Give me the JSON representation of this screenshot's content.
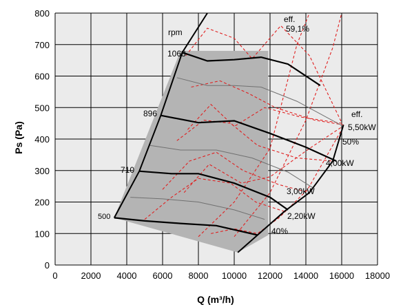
{
  "chart_data": {
    "type": "line",
    "title": "",
    "xlabel": "Q (m³/h)",
    "ylabel": "Ps (Pa)",
    "xlim": [
      0,
      18000
    ],
    "ylim": [
      0,
      800
    ],
    "x_ticks": [
      "0",
      "2000",
      "4000",
      "6000",
      "8000",
      "10000",
      "12000",
      "14000",
      "16000",
      "18000"
    ],
    "y_ticks": [
      "0",
      "100",
      "200",
      "300",
      "400",
      "500",
      "600",
      "700",
      "800"
    ],
    "grid": true,
    "colors": {
      "plot_bg": "#ebebeb",
      "operating_area": "#b4b4b4",
      "speed_curve": "#000000",
      "intermediate_curve": "#707070",
      "iso_line": "#e02020"
    },
    "operating_area": [
      [
        3300,
        150
      ],
      [
        7000,
        680
      ],
      [
        11900,
        680
      ],
      [
        11900,
        95
      ],
      [
        10200,
        40
      ]
    ],
    "rpm_label": "rpm",
    "speed_curves": [
      {
        "label": "1068",
        "points": [
          [
            7100,
            675
          ],
          [
            8500,
            648
          ],
          [
            10000,
            652
          ],
          [
            11500,
            660
          ],
          [
            13000,
            638
          ],
          [
            14800,
            570
          ]
        ]
      },
      {
        "label": "896",
        "points": [
          [
            5900,
            475
          ],
          [
            8000,
            452
          ],
          [
            10000,
            458
          ],
          [
            12000,
            418
          ],
          [
            14000,
            374
          ],
          [
            15700,
            330
          ]
        ]
      },
      {
        "label": "710",
        "points": [
          [
            4700,
            298
          ],
          [
            6500,
            290
          ],
          [
            8000,
            290
          ],
          [
            10000,
            260
          ],
          [
            12000,
            215
          ],
          [
            13000,
            175
          ]
        ]
      },
      {
        "label": "500",
        "points": [
          [
            3300,
            150
          ],
          [
            5000,
            140
          ],
          [
            7000,
            132
          ],
          [
            9000,
            125
          ],
          [
            11300,
            95
          ]
        ]
      }
    ],
    "intermediate_curves": [
      {
        "points": [
          [
            6800,
            595
          ],
          [
            8500,
            570
          ],
          [
            10000,
            570
          ],
          [
            11500,
            565
          ],
          [
            13500,
            520
          ],
          [
            16100,
            440
          ]
        ]
      },
      {
        "points": [
          [
            5300,
            380
          ],
          [
            7000,
            365
          ],
          [
            9000,
            365
          ],
          [
            11000,
            340
          ],
          [
            13000,
            295
          ],
          [
            14400,
            245
          ]
        ]
      },
      {
        "points": [
          [
            4200,
            215
          ],
          [
            6000,
            210
          ],
          [
            8000,
            200
          ],
          [
            10000,
            175
          ],
          [
            11700,
            145
          ]
        ]
      }
    ],
    "power_lines": [
      {
        "label": "2,20kW",
        "points": [
          [
            5000,
            145
          ],
          [
            6500,
            215
          ],
          [
            8000,
            275
          ],
          [
            9800,
            260
          ],
          [
            11200,
            200
          ],
          [
            12800,
            170
          ]
        ]
      },
      {
        "label": "3,00kW",
        "points": [
          [
            6000,
            240
          ],
          [
            7500,
            330
          ],
          [
            9000,
            358
          ],
          [
            10500,
            300
          ],
          [
            12500,
            255
          ],
          [
            14200,
            230
          ]
        ]
      },
      {
        "label": "4,00kW",
        "points": [
          [
            6800,
            395
          ],
          [
            8300,
            460
          ],
          [
            9800,
            450
          ],
          [
            11300,
            380
          ],
          [
            13500,
            340
          ],
          [
            15500,
            330
          ]
        ]
      },
      {
        "label": "5,50kW",
        "points": [
          [
            7600,
            565
          ],
          [
            9200,
            585
          ],
          [
            10800,
            545
          ],
          [
            12300,
            500
          ],
          [
            14500,
            460
          ],
          [
            16100,
            445
          ]
        ]
      }
    ],
    "efficiency_lines": [
      {
        "label": "40%",
        "points": [
          [
            8700,
            100
          ],
          [
            10000,
            115
          ],
          [
            11300,
            100
          ],
          [
            12500,
            150
          ],
          [
            14100,
            240
          ],
          [
            16100,
            440
          ]
        ]
      },
      {
        "label": "50%",
        "points": [
          [
            7200,
            230
          ],
          [
            8600,
            320
          ],
          [
            10400,
            260
          ],
          [
            12000,
            280
          ],
          [
            14200,
            370
          ],
          [
            16100,
            442
          ]
        ]
      },
      {
        "label": "",
        "points": [
          [
            7400,
            430
          ],
          [
            8700,
            510
          ],
          [
            10000,
            440
          ],
          [
            11700,
            500
          ],
          [
            13700,
            470
          ],
          [
            16000,
            450
          ]
        ]
      },
      {
        "label": "59,1%",
        "points": [
          [
            7300,
            665
          ],
          [
            8500,
            752
          ],
          [
            10000,
            720
          ],
          [
            11000,
            655
          ],
          [
            12600,
            760
          ],
          [
            14200,
            665
          ],
          [
            16000,
            452
          ]
        ]
      }
    ],
    "eff_label": "eff.",
    "max_eff_label": "59,1%",
    "system_lines": [
      {
        "points": [
          [
            8000,
            90
          ],
          [
            10000,
            200
          ],
          [
            12000,
            370
          ],
          [
            13500,
            700
          ],
          [
            14200,
            800
          ]
        ]
      },
      {
        "points": [
          [
            10000,
            90
          ],
          [
            12000,
            230
          ],
          [
            14000,
            460
          ],
          [
            15500,
            690
          ],
          [
            16000,
            800
          ]
        ]
      }
    ]
  }
}
